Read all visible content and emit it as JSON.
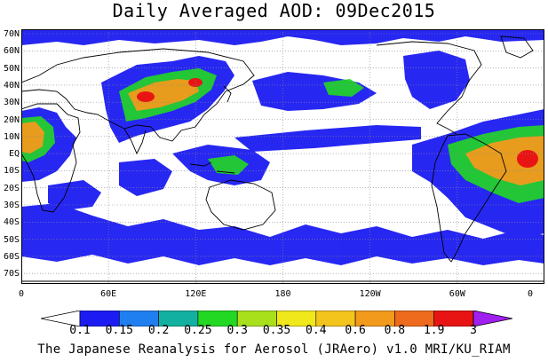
{
  "title": "Daily Averaged AOD: 09Dec2015",
  "footer": "The Japanese Reanalysis for Aerosol (JRAero) v1.0 MRI/KU_RIAM",
  "lat_labels": [
    "70N",
    "60N",
    "50N",
    "40N",
    "30N",
    "20N",
    "10N",
    "EQ",
    "10S",
    "20S",
    "30S",
    "40S",
    "50S",
    "60S",
    "70S"
  ],
  "lon_labels": [
    "0",
    "60E",
    "120E",
    "180",
    "120W",
    "60W",
    "0"
  ],
  "colorbar": {
    "levels": [
      "0.1",
      "0.15",
      "0.2",
      "0.25",
      "0.3",
      "0.35",
      "0.4",
      "0.6",
      "0.8",
      "1.9",
      "3"
    ],
    "colors": [
      "#ffffff",
      "#1c1cf2",
      "#1f7ff0",
      "#12b0a0",
      "#22d822",
      "#a8e01c",
      "#f0e81a",
      "#f2c41c",
      "#f29a1c",
      "#ee6a1c",
      "#e81414",
      "#a020f0"
    ]
  },
  "map_colors": {
    "low": "#1c1cf2",
    "mid": "#22d822",
    "high": "#f29a1c",
    "peak": "#e81414",
    "coast": "#000000",
    "grid": "#888888"
  }
}
